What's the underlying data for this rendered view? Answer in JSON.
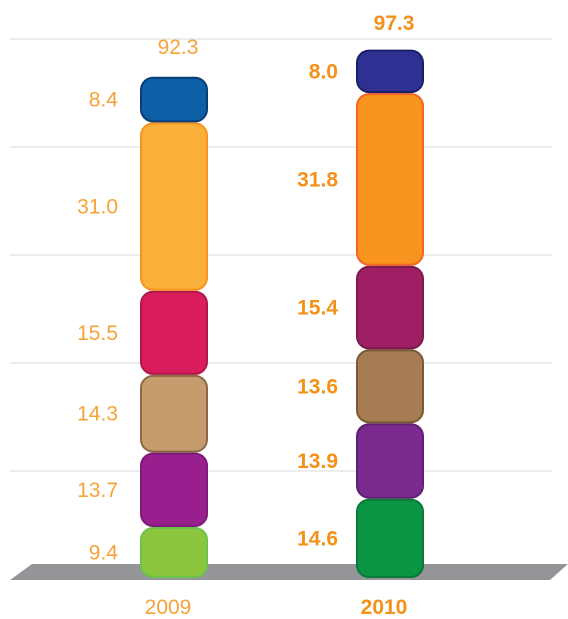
{
  "chart_data": {
    "type": "bar",
    "stacked": true,
    "categories": [
      "2009",
      "2010"
    ],
    "totals": [
      "92.3",
      "97.3"
    ],
    "series": [
      {
        "values": [
          9.4,
          14.6
        ],
        "labels": [
          "9.4",
          "14.6"
        ],
        "colors": [
          "#8cc63f",
          "#0b9444"
        ],
        "borders": [
          "#6cc24a",
          "#087a38"
        ]
      },
      {
        "values": [
          13.7,
          13.9
        ],
        "labels": [
          "13.7",
          "13.9"
        ],
        "colors": [
          "#9a1f8e",
          "#7b2a90"
        ],
        "borders": [
          "#7f1a76",
          "#5e2070"
        ]
      },
      {
        "values": [
          14.3,
          13.6
        ],
        "labels": [
          "14.3",
          "13.6"
        ],
        "colors": [
          "#c69c6d",
          "#a67c52"
        ],
        "borders": [
          "#8b6a45",
          "#7a5a36"
        ]
      },
      {
        "values": [
          15.5,
          15.4
        ],
        "labels": [
          "15.5",
          "15.4"
        ],
        "colors": [
          "#d91c5c",
          "#9e1f63"
        ],
        "borders": [
          "#b0174b",
          "#7a1a4d"
        ]
      },
      {
        "values": [
          31.0,
          31.8
        ],
        "labels": [
          "31.0",
          "31.8"
        ],
        "colors": [
          "#fbb03b",
          "#f7941d"
        ],
        "borders": [
          "#f7941d",
          "#f26522"
        ]
      },
      {
        "values": [
          8.4,
          8.0
        ],
        "labels": [
          "8.4",
          "8.0"
        ],
        "colors": [
          "#0d5fa6",
          "#2e3192"
        ],
        "borders": [
          "#0a3d73",
          "#1b1d66"
        ]
      }
    ],
    "grid": true,
    "legend": "none"
  }
}
